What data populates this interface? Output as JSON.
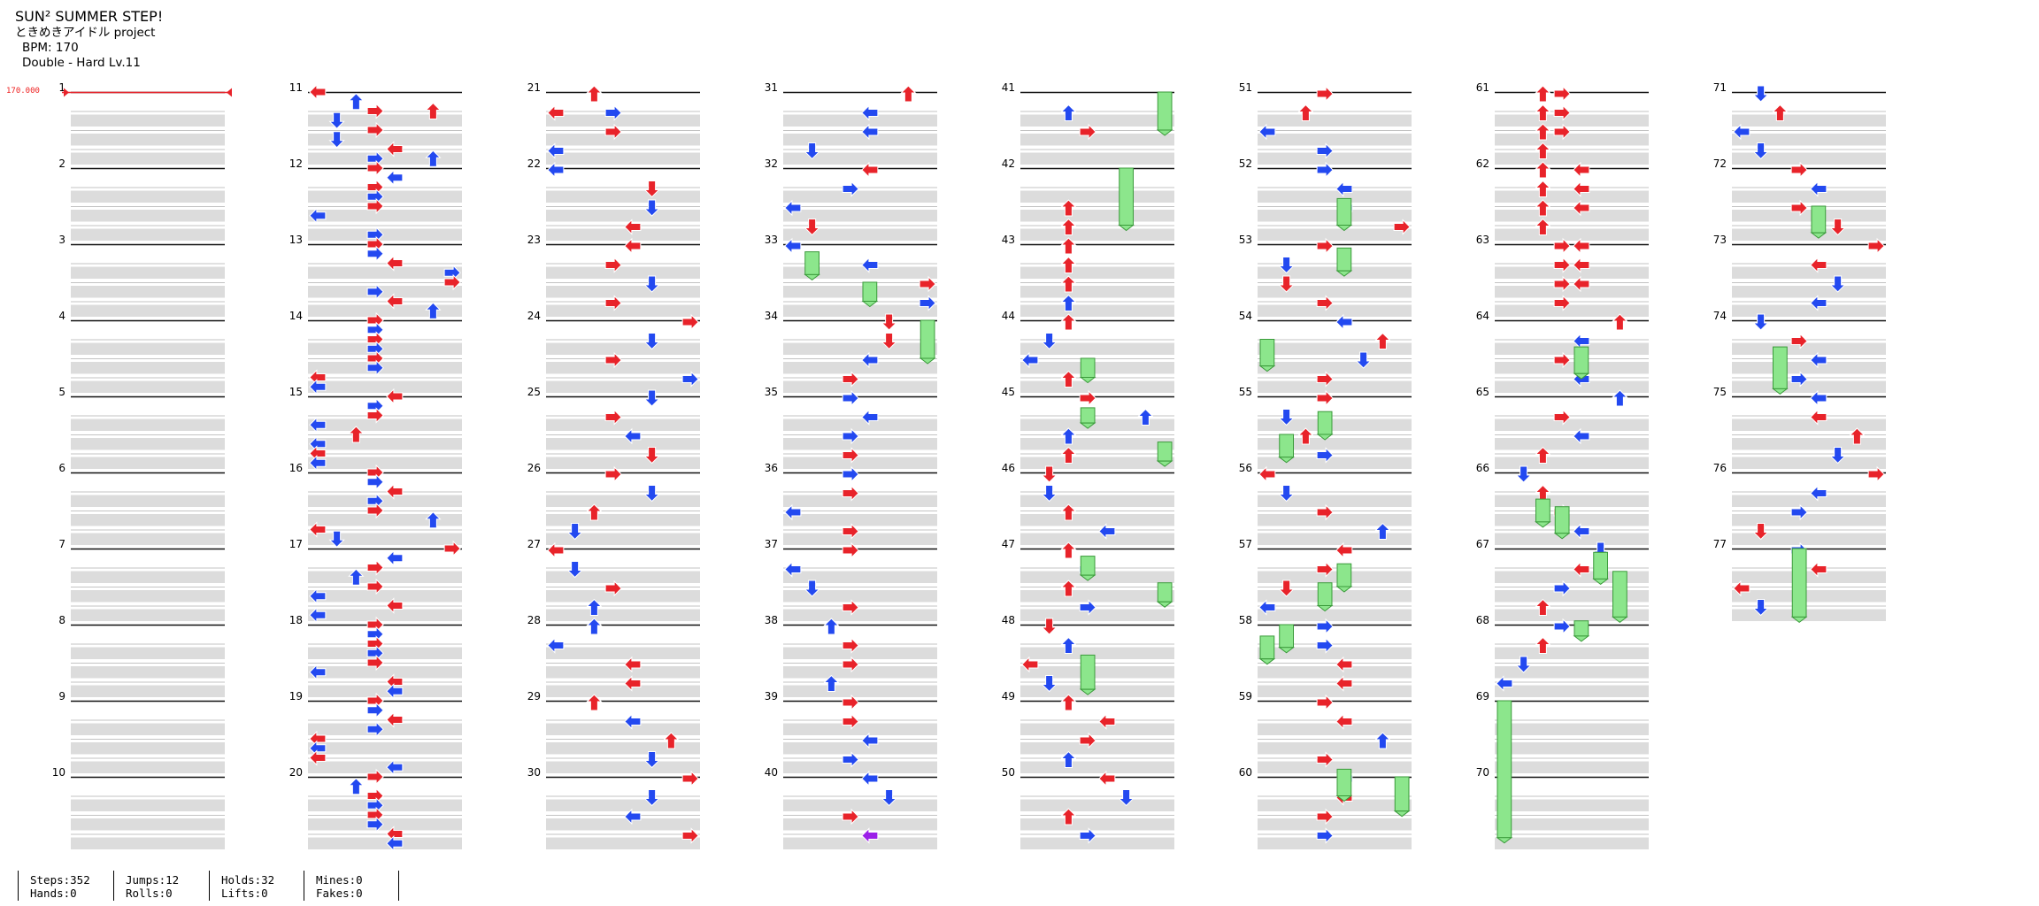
{
  "song": {
    "title": "SUN² SUMMER STEP!",
    "artist": "ときめきアイドル project",
    "bpm_label": "BPM: 170",
    "difficulty": "Double - Hard  Lv.11"
  },
  "bpm_marker": {
    "value": "170.000",
    "at_measure": 1
  },
  "chart_data": {
    "type": "table",
    "description_source": "stepchart",
    "lanes": 8,
    "measure_numbers": [
      "1",
      "2",
      "3",
      "4",
      "5",
      "6",
      "7",
      "8",
      "9",
      "10",
      "11",
      "12",
      "13",
      "14",
      "15",
      "16",
      "17",
      "18",
      "19",
      "20",
      "21",
      "22",
      "23",
      "24",
      "25",
      "26",
      "27",
      "28",
      "29",
      "30",
      "31",
      "32",
      "33",
      "34",
      "35",
      "36",
      "37",
      "38",
      "39",
      "40",
      "41",
      "42",
      "43",
      "44",
      "45",
      "46",
      "47",
      "48",
      "49",
      "50",
      "51",
      "52",
      "53",
      "54",
      "55",
      "56",
      "57",
      "58",
      "59",
      "60",
      "61",
      "62",
      "63",
      "64",
      "65",
      "66",
      "67",
      "68",
      "69",
      "70",
      "71",
      "72",
      "73",
      "74",
      "75",
      "76",
      "77"
    ],
    "notes": [
      [
        11,
        0,
        0
      ],
      [
        11,
        4,
        2
      ],
      [
        11,
        8,
        3
      ],
      [
        11,
        8,
        6
      ],
      [
        11,
        12,
        1
      ],
      [
        11,
        16,
        3
      ],
      [
        11,
        20,
        1
      ],
      [
        11,
        24,
        4
      ],
      [
        11,
        28,
        3
      ],
      [
        11,
        28,
        6
      ],
      [
        12,
        0,
        3
      ],
      [
        12,
        4,
        4
      ],
      [
        12,
        8,
        3
      ],
      [
        12,
        12,
        3
      ],
      [
        12,
        16,
        3
      ],
      [
        12,
        20,
        0
      ],
      [
        12,
        28,
        3
      ],
      [
        13,
        0,
        3
      ],
      [
        13,
        4,
        3
      ],
      [
        13,
        8,
        4
      ],
      [
        13,
        12,
        7
      ],
      [
        13,
        16,
        7
      ],
      [
        13,
        20,
        3
      ],
      [
        13,
        24,
        4
      ],
      [
        13,
        28,
        6
      ],
      [
        14,
        0,
        3
      ],
      [
        14,
        4,
        3
      ],
      [
        14,
        8,
        3
      ],
      [
        14,
        12,
        3
      ],
      [
        14,
        16,
        3
      ],
      [
        14,
        20,
        3
      ],
      [
        14,
        24,
        0
      ],
      [
        14,
        28,
        0
      ],
      [
        15,
        0,
        4
      ],
      [
        15,
        4,
        3
      ],
      [
        15,
        8,
        3
      ],
      [
        15,
        12,
        0
      ],
      [
        15,
        16,
        2
      ],
      [
        15,
        20,
        0
      ],
      [
        15,
        24,
        0
      ],
      [
        15,
        28,
        0
      ],
      [
        16,
        0,
        3
      ],
      [
        16,
        4,
        3
      ],
      [
        16,
        8,
        4
      ],
      [
        16,
        12,
        3
      ],
      [
        16,
        16,
        3
      ],
      [
        16,
        20,
        6
      ],
      [
        16,
        24,
        0
      ],
      [
        16,
        28,
        1
      ],
      [
        17,
        0,
        7
      ],
      [
        17,
        4,
        4
      ],
      [
        17,
        8,
        3
      ],
      [
        17,
        12,
        2
      ],
      [
        17,
        16,
        3
      ],
      [
        17,
        20,
        0
      ],
      [
        17,
        24,
        4
      ],
      [
        17,
        28,
        0
      ],
      [
        18,
        0,
        3
      ],
      [
        18,
        4,
        3
      ],
      [
        18,
        8,
        3
      ],
      [
        18,
        12,
        3
      ],
      [
        18,
        16,
        3
      ],
      [
        18,
        20,
        0
      ],
      [
        18,
        24,
        4
      ],
      [
        18,
        28,
        4
      ],
      [
        19,
        0,
        3
      ],
      [
        19,
        4,
        3
      ],
      [
        19,
        8,
        4
      ],
      [
        19,
        12,
        3
      ],
      [
        19,
        16,
        0
      ],
      [
        19,
        20,
        0
      ],
      [
        19,
        24,
        0
      ],
      [
        19,
        28,
        4
      ],
      [
        20,
        0,
        3
      ],
      [
        20,
        4,
        2
      ],
      [
        20,
        8,
        3
      ],
      [
        20,
        12,
        3
      ],
      [
        20,
        16,
        3
      ],
      [
        20,
        20,
        3
      ],
      [
        20,
        24,
        4
      ],
      [
        20,
        28,
        4
      ]
    ],
    "stats": {
      "steps": 352,
      "jumps": 12,
      "holds": 32,
      "mines": 0,
      "hands": 0,
      "rolls": 0,
      "lifts": 0,
      "fakes": 0
    }
  },
  "stats_labels": [
    [
      "Steps:352",
      "Hands:0"
    ],
    [
      "Jumps:12",
      "Rolls:0"
    ],
    [
      "Holds:32",
      "Lifts:0"
    ],
    [
      "Mines:0",
      "Fakes:0"
    ]
  ],
  "colors": {
    "quarter": "#e8232a",
    "eighth": "#2349f0",
    "sixteenth": "#9b1fe8",
    "hold": "#8ce68c",
    "hold_border": "#3a9a3a",
    "band": "#dcdcdc",
    "measure_line": "#111111",
    "bpm": "#e8232a"
  },
  "icons": {
    "arrow_left": "arrow-left-icon",
    "arrow_down": "arrow-down-icon",
    "arrow_up": "arrow-up-icon",
    "arrow_right": "arrow-right-icon",
    "hold": "hold-body-icon"
  }
}
